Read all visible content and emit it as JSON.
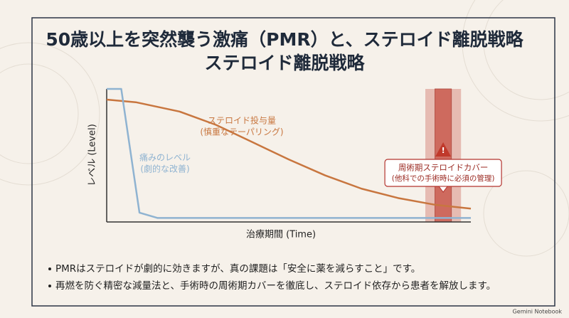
{
  "title": [
    "50歳以上を突然襲う激痛（PMR）と、ステロイド離脱戦略",
    "ステロイド離脱戦略"
  ],
  "chart_data": {
    "type": "line",
    "xlabel": "治療期間 (Time)",
    "ylabel": "レベル (Level)",
    "xlim": [
      0,
      100
    ],
    "ylim": [
      0,
      100
    ],
    "series": [
      {
        "name": "ステロイド投与量",
        "note": "(慎重なテーパリング)",
        "color": "#c8763f",
        "x": [
          0,
          8,
          20,
          30,
          40,
          50,
          60,
          70,
          80,
          90,
          100
        ],
        "values": [
          92,
          90,
          83,
          73,
          60,
          47,
          35,
          25,
          18,
          13,
          10
        ]
      },
      {
        "name": "痛みのレベル",
        "note": "(劇的な改善)",
        "color": "#8fb3d1",
        "x": [
          0,
          4,
          9,
          14,
          100
        ],
        "values": [
          100,
          100,
          7,
          3,
          3
        ]
      }
    ],
    "highlight": {
      "range": [
        87.5,
        97.3
      ],
      "color": "#c9574a",
      "label": [
        "周術期ステロイドカバー",
        "(他科での手術時に必須の管理)"
      ]
    }
  },
  "bullets": [
    "PMRはステロイドが劇的に効きますが、真の課題は「安全に薬を減らすこと」です。",
    "再燃を防ぐ精密な減量法と、手術時の周術期カバーを徹底し、ステロイド依存から患者を解放します。"
  ],
  "watermark": "Gemini Notebook"
}
